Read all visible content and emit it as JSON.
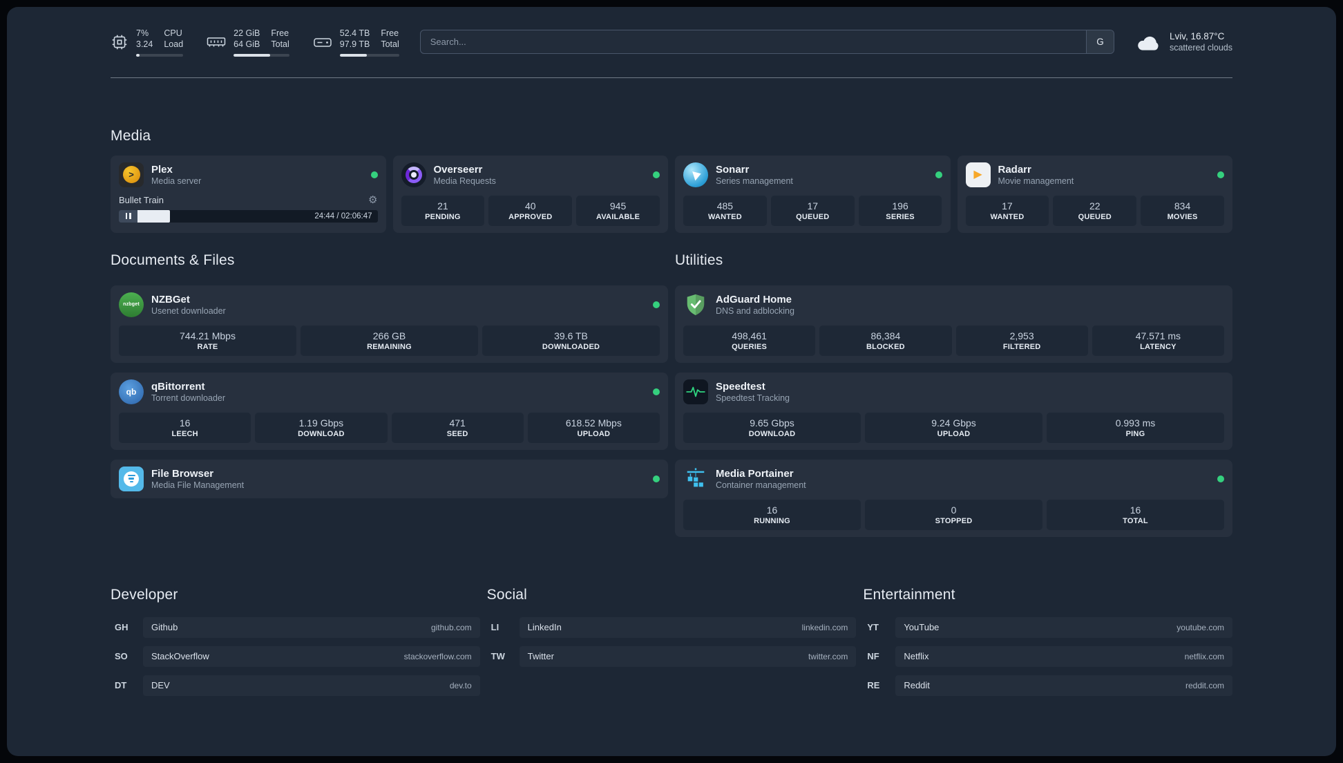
{
  "topbar": {
    "cpu": {
      "values": [
        "7%",
        "3.24"
      ],
      "labels": [
        "CPU",
        "Load"
      ],
      "percent": 7
    },
    "ram": {
      "values": [
        "22 GiB",
        "64 GiB"
      ],
      "labels": [
        "Free",
        "Total"
      ],
      "percent": 66
    },
    "disk": {
      "values": [
        "52.4 TB",
        "97.9 TB"
      ],
      "labels": [
        "Free",
        "Total"
      ],
      "percent": 46
    },
    "search": {
      "placeholder": "Search...",
      "provider_label": "G"
    },
    "weather": {
      "location": "Lviv, 16.87°C",
      "condition": "scattered clouds"
    }
  },
  "media": {
    "title": "Media",
    "plex": {
      "title": "Plex",
      "subtitle": "Media server",
      "now_playing": "Bullet Train",
      "time": "24:44 / 02:06:47",
      "progress_percent": 19
    },
    "overseerr": {
      "title": "Overseerr",
      "subtitle": "Media Requests",
      "stats": [
        {
          "value": "21",
          "label": "PENDING"
        },
        {
          "value": "40",
          "label": "APPROVED"
        },
        {
          "value": "945",
          "label": "AVAILABLE"
        }
      ]
    },
    "sonarr": {
      "title": "Sonarr",
      "subtitle": "Series management",
      "stats": [
        {
          "value": "485",
          "label": "WANTED"
        },
        {
          "value": "17",
          "label": "QUEUED"
        },
        {
          "value": "196",
          "label": "SERIES"
        }
      ]
    },
    "radarr": {
      "title": "Radarr",
      "subtitle": "Movie management",
      "stats": [
        {
          "value": "17",
          "label": "WANTED"
        },
        {
          "value": "22",
          "label": "QUEUED"
        },
        {
          "value": "834",
          "label": "MOVIES"
        }
      ]
    }
  },
  "documents": {
    "title": "Documents & Files",
    "nzbget": {
      "title": "NZBGet",
      "subtitle": "Usenet downloader",
      "stats": [
        {
          "value": "744.21 Mbps",
          "label": "RATE"
        },
        {
          "value": "266 GB",
          "label": "REMAINING"
        },
        {
          "value": "39.6 TB",
          "label": "DOWNLOADED"
        }
      ]
    },
    "qbittorrent": {
      "title": "qBittorrent",
      "subtitle": "Torrent downloader",
      "stats": [
        {
          "value": "16",
          "label": "LEECH"
        },
        {
          "value": "1.19 Gbps",
          "label": "DOWNLOAD"
        },
        {
          "value": "471",
          "label": "SEED"
        },
        {
          "value": "618.52 Mbps",
          "label": "UPLOAD"
        }
      ]
    },
    "filebrowser": {
      "title": "File Browser",
      "subtitle": "Media File Management"
    }
  },
  "utilities": {
    "title": "Utilities",
    "adguard": {
      "title": "AdGuard Home",
      "subtitle": "DNS and adblocking",
      "stats": [
        {
          "value": "498,461",
          "label": "QUERIES"
        },
        {
          "value": "86,384",
          "label": "BLOCKED"
        },
        {
          "value": "2,953",
          "label": "FILTERED"
        },
        {
          "value": "47.571 ms",
          "label": "LATENCY"
        }
      ]
    },
    "speedtest": {
      "title": "Speedtest",
      "subtitle": "Speedtest Tracking",
      "stats": [
        {
          "value": "9.65 Gbps",
          "label": "DOWNLOAD"
        },
        {
          "value": "9.24 Gbps",
          "label": "UPLOAD"
        },
        {
          "value": "0.993 ms",
          "label": "PING"
        }
      ]
    },
    "portainer": {
      "title": "Media Portainer",
      "subtitle": "Container management",
      "stats": [
        {
          "value": "16",
          "label": "RUNNING"
        },
        {
          "value": "0",
          "label": "STOPPED"
        },
        {
          "value": "16",
          "label": "TOTAL"
        }
      ]
    }
  },
  "bookmarks": {
    "developer": {
      "title": "Developer",
      "items": [
        {
          "abbr": "GH",
          "name": "Github",
          "url": "github.com"
        },
        {
          "abbr": "SO",
          "name": "StackOverflow",
          "url": "stackoverflow.com"
        },
        {
          "abbr": "DT",
          "name": "DEV",
          "url": "dev.to"
        }
      ]
    },
    "social": {
      "title": "Social",
      "items": [
        {
          "abbr": "LI",
          "name": "LinkedIn",
          "url": "linkedin.com"
        },
        {
          "abbr": "TW",
          "name": "Twitter",
          "url": "twitter.com"
        }
      ]
    },
    "entertainment": {
      "title": "Entertainment",
      "items": [
        {
          "abbr": "YT",
          "name": "YouTube",
          "url": "youtube.com"
        },
        {
          "abbr": "NF",
          "name": "Netflix",
          "url": "netflix.com"
        },
        {
          "abbr": "RE",
          "name": "Reddit",
          "url": "reddit.com"
        }
      ]
    }
  },
  "icon_text": {
    "plex": ">",
    "radarr": "▶",
    "nzbget": "nzbget",
    "qbittorrent": "qb",
    "settings": "⚙"
  },
  "colors": {
    "status_online": "#35d07e",
    "progress_fill": "#dbe1e8",
    "speedtest_line": "#2fd37f"
  }
}
